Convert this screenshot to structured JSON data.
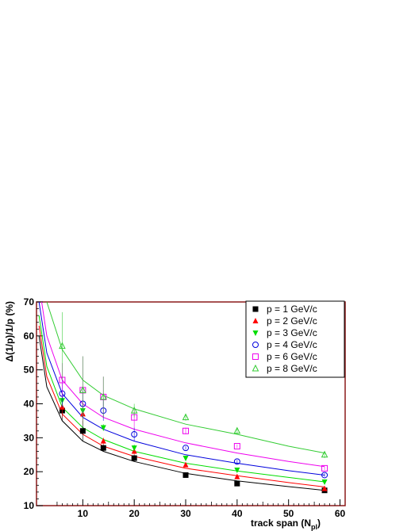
{
  "chart_data": {
    "type": "scatter",
    "xlabel": "track span (N",
    "xlabel_sub": "pl",
    "xlabel_close": ")",
    "ylabel": "Δ(1/p)/1/p (%)",
    "xlim": [
      1,
      61
    ],
    "ylim": [
      10,
      70
    ],
    "xticks": [
      10,
      20,
      30,
      40,
      50,
      60
    ],
    "yticks": [
      10,
      20,
      30,
      40,
      50,
      60,
      70
    ],
    "grid": false,
    "legend_position": "top-right",
    "series": [
      {
        "name": "p  = 1 GeV/c",
        "color": "#000000",
        "marker": "filled-square",
        "x": [
          6,
          10,
          14,
          20,
          30,
          40,
          57
        ],
        "y": [
          38,
          32,
          27,
          24,
          19,
          16.5,
          14.5
        ],
        "err": [
          3,
          3,
          1,
          1,
          0.5,
          0.5,
          0.5
        ],
        "fit": [
          [
            1.5,
            60
          ],
          [
            3,
            45
          ],
          [
            6,
            35
          ],
          [
            10,
            29
          ],
          [
            14,
            26
          ],
          [
            20,
            23
          ],
          [
            30,
            19.5
          ],
          [
            40,
            17.3
          ],
          [
            50,
            15.6
          ],
          [
            57,
            14.5
          ]
        ]
      },
      {
        "name": "p = 2 GeV/c",
        "color": "#ff0000",
        "marker": "filled-triangle-up",
        "x": [
          6,
          10,
          14,
          20,
          30,
          40,
          57
        ],
        "y": [
          39,
          37,
          29,
          26,
          22,
          18.5,
          15
        ],
        "err": [
          3,
          3,
          1,
          1,
          0.5,
          0.5,
          0.5
        ],
        "fit": [
          [
            1.5,
            63
          ],
          [
            3,
            48
          ],
          [
            6,
            37
          ],
          [
            10,
            31
          ],
          [
            14,
            27.5
          ],
          [
            20,
            24.5
          ],
          [
            30,
            21
          ],
          [
            40,
            18.8
          ],
          [
            50,
            16.8
          ],
          [
            57,
            15.5
          ]
        ]
      },
      {
        "name": "p = 3 GeV/c",
        "color": "#00dd00",
        "marker": "filled-triangle-down",
        "x": [
          6,
          10,
          14,
          20,
          30,
          40,
          57
        ],
        "y": [
          41,
          38,
          33,
          27,
          24,
          20.5,
          17
        ],
        "err": [
          2,
          2,
          1,
          1,
          0.5,
          0.5,
          0.5
        ],
        "fit": [
          [
            1.5,
            66
          ],
          [
            3,
            51
          ],
          [
            6,
            39
          ],
          [
            10,
            33
          ],
          [
            14,
            29.5
          ],
          [
            20,
            26
          ],
          [
            30,
            22.5
          ],
          [
            40,
            20.2
          ],
          [
            50,
            18.3
          ],
          [
            57,
            17
          ]
        ]
      },
      {
        "name": "p = 4 GeV/c",
        "color": "#0000dd",
        "marker": "open-circle",
        "x": [
          6,
          10,
          14,
          20,
          30,
          40,
          57
        ],
        "y": [
          43,
          40,
          38,
          31,
          27,
          23,
          19
        ],
        "err": [
          4,
          4,
          3,
          2,
          0.5,
          0.5,
          0.5
        ],
        "fit": [
          [
            1.5,
            70
          ],
          [
            3,
            55
          ],
          [
            6,
            43
          ],
          [
            10,
            36
          ],
          [
            14,
            32.5
          ],
          [
            20,
            29
          ],
          [
            30,
            25
          ],
          [
            40,
            22.5
          ],
          [
            50,
            20.3
          ],
          [
            57,
            19
          ]
        ]
      },
      {
        "name": "p = 6 GeV/c",
        "color": "#ee00ee",
        "marker": "open-square",
        "x": [
          6,
          10,
          14,
          20,
          30,
          40,
          57
        ],
        "y": [
          47,
          44,
          42,
          36,
          32,
          27.5,
          21
        ],
        "err": [
          5,
          10,
          6,
          3,
          1,
          0.5,
          0.5
        ],
        "fit": [
          [
            2,
            70
          ],
          [
            3,
            60
          ],
          [
            6,
            47
          ],
          [
            10,
            40
          ],
          [
            14,
            36
          ],
          [
            20,
            32.5
          ],
          [
            30,
            28.5
          ],
          [
            40,
            25.5
          ],
          [
            50,
            23
          ],
          [
            57,
            21.5
          ]
        ]
      },
      {
        "name": "p = 8 GeV/c",
        "color": "#33cc33",
        "marker": "open-triangle-up",
        "x": [
          6,
          10,
          14,
          20,
          30,
          40,
          57
        ],
        "y": [
          57,
          44,
          42,
          38,
          36,
          32,
          25
        ],
        "err": [
          10,
          10,
          6,
          2,
          1,
          1,
          1
        ],
        "fit": [
          [
            3,
            70
          ],
          [
            6,
            56
          ],
          [
            10,
            47
          ],
          [
            14,
            42.5
          ],
          [
            20,
            38.5
          ],
          [
            30,
            34
          ],
          [
            40,
            31
          ],
          [
            50,
            27.5
          ],
          [
            57,
            25.5
          ]
        ]
      }
    ]
  }
}
